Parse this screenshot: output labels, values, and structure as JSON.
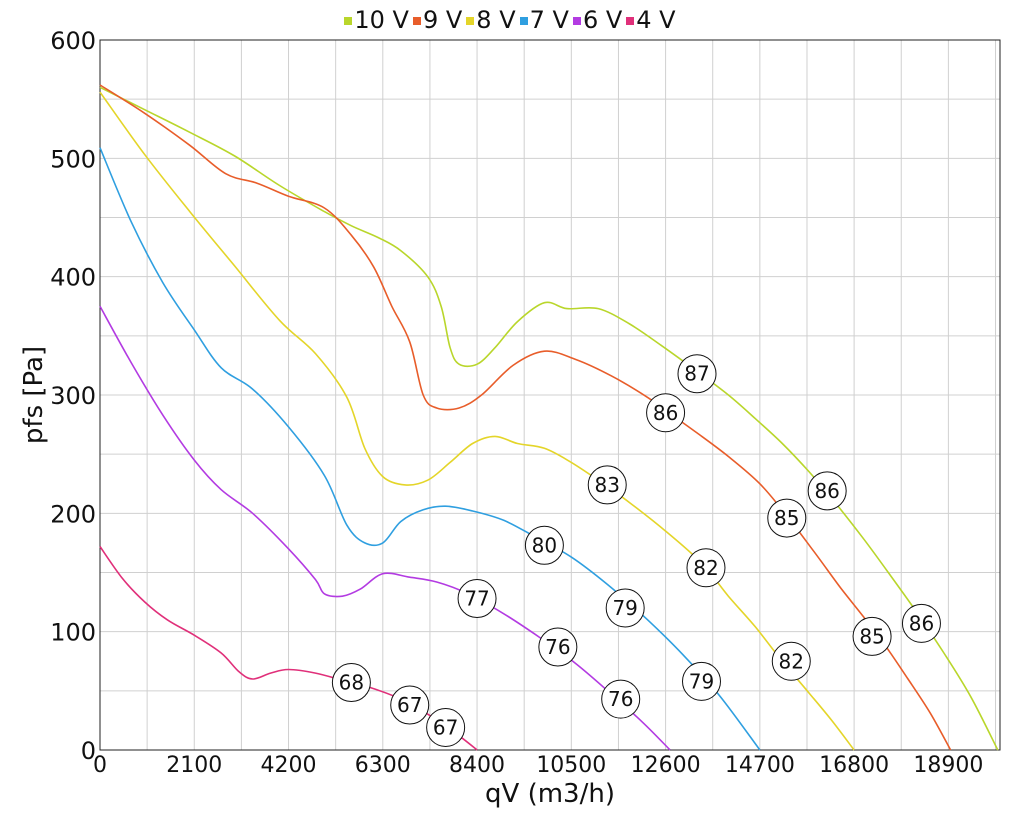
{
  "chart_data": {
    "type": "line",
    "xlabel": "qV (m3/h)",
    "ylabel": "pfs [Pa]",
    "xlim": [
      0,
      20050
    ],
    "ylim": [
      0,
      600
    ],
    "xticks": [
      0,
      2100,
      4200,
      6300,
      8400,
      10500,
      12600,
      14700,
      16800,
      18900
    ],
    "xtick_labels": [
      "0",
      "2100",
      "4200",
      "6300",
      "8400",
      "10500",
      "12600",
      "14700",
      "16800",
      "18900"
    ],
    "yticks": [
      0,
      100,
      200,
      300,
      400,
      500,
      600
    ],
    "ytick_labels": [
      "0",
      "100",
      "200",
      "300",
      "400",
      "500",
      "600"
    ],
    "grid": true,
    "legend_position": "top-center",
    "series": [
      {
        "name": "10 V",
        "color": "#b9d62b",
        "points": [
          [
            0,
            560
          ],
          [
            1000,
            541
          ],
          [
            2000,
            522
          ],
          [
            3000,
            502
          ],
          [
            4000,
            477
          ],
          [
            5000,
            455
          ],
          [
            5600,
            443
          ],
          [
            6200,
            433
          ],
          [
            6700,
            422
          ],
          [
            7300,
            400
          ],
          [
            7600,
            375
          ],
          [
            7800,
            340
          ],
          [
            8000,
            326
          ],
          [
            8400,
            326
          ],
          [
            8800,
            340
          ],
          [
            9300,
            362
          ],
          [
            9900,
            378
          ],
          [
            10400,
            373
          ],
          [
            11100,
            373
          ],
          [
            11800,
            360
          ],
          [
            12500,
            342
          ],
          [
            13300,
            320
          ],
          [
            14000,
            300
          ],
          [
            14600,
            280
          ],
          [
            15200,
            259
          ],
          [
            15800,
            235
          ],
          [
            16400,
            208
          ],
          [
            17000,
            179
          ],
          [
            17600,
            148
          ],
          [
            18200,
            116
          ],
          [
            18800,
            82
          ],
          [
            19400,
            45
          ],
          [
            20000,
            0
          ]
        ]
      },
      {
        "name": "9 V",
        "color": "#e85d2a",
        "points": [
          [
            0,
            562
          ],
          [
            1000,
            538
          ],
          [
            2000,
            511
          ],
          [
            2800,
            487
          ],
          [
            3500,
            479
          ],
          [
            4200,
            468
          ],
          [
            5000,
            458
          ],
          [
            5600,
            435
          ],
          [
            6100,
            408
          ],
          [
            6500,
            375
          ],
          [
            6900,
            345
          ],
          [
            7200,
            300
          ],
          [
            7500,
            289
          ],
          [
            8000,
            289
          ],
          [
            8500,
            300
          ],
          [
            9200,
            325
          ],
          [
            9900,
            337
          ],
          [
            10600,
            330
          ],
          [
            11400,
            316
          ],
          [
            12200,
            298
          ],
          [
            12600,
            287
          ],
          [
            13300,
            268
          ],
          [
            14000,
            248
          ],
          [
            14700,
            225
          ],
          [
            15300,
            198
          ],
          [
            15900,
            168
          ],
          [
            16500,
            137
          ],
          [
            17000,
            113
          ],
          [
            17500,
            88
          ],
          [
            18000,
            60
          ],
          [
            18500,
            31
          ],
          [
            18950,
            0
          ]
        ]
      },
      {
        "name": "8 V",
        "color": "#e4d529",
        "points": [
          [
            0,
            556
          ],
          [
            1000,
            503
          ],
          [
            2000,
            455
          ],
          [
            3000,
            409
          ],
          [
            4000,
            363
          ],
          [
            4800,
            335
          ],
          [
            5500,
            298
          ],
          [
            5900,
            255
          ],
          [
            6300,
            231
          ],
          [
            6800,
            224
          ],
          [
            7300,
            228
          ],
          [
            7800,
            243
          ],
          [
            8300,
            259
          ],
          [
            8800,
            265
          ],
          [
            9300,
            259
          ],
          [
            9900,
            255
          ],
          [
            10500,
            243
          ],
          [
            11100,
            228
          ],
          [
            11800,
            209
          ],
          [
            12600,
            185
          ],
          [
            13400,
            158
          ],
          [
            14000,
            130
          ],
          [
            14600,
            104
          ],
          [
            15200,
            75
          ],
          [
            15800,
            48
          ],
          [
            16300,
            25
          ],
          [
            16800,
            0
          ]
        ]
      },
      {
        "name": "7 V",
        "color": "#2f9fe0",
        "points": [
          [
            0,
            509
          ],
          [
            700,
            446
          ],
          [
            1400,
            395
          ],
          [
            2100,
            355
          ],
          [
            2700,
            323
          ],
          [
            3400,
            305
          ],
          [
            4200,
            273
          ],
          [
            5000,
            232
          ],
          [
            5500,
            190
          ],
          [
            5900,
            175
          ],
          [
            6300,
            175
          ],
          [
            6700,
            193
          ],
          [
            7200,
            203
          ],
          [
            7700,
            206
          ],
          [
            8300,
            202
          ],
          [
            9000,
            194
          ],
          [
            9700,
            180
          ],
          [
            10500,
            163
          ],
          [
            11300,
            140
          ],
          [
            12200,
            110
          ],
          [
            13000,
            80
          ],
          [
            13800,
            46
          ],
          [
            14700,
            0
          ]
        ]
      },
      {
        "name": "6 V",
        "color": "#b33be2",
        "points": [
          [
            0,
            375
          ],
          [
            700,
            327
          ],
          [
            1400,
            283
          ],
          [
            2100,
            245
          ],
          [
            2700,
            220
          ],
          [
            3400,
            200
          ],
          [
            4200,
            170
          ],
          [
            4800,
            144
          ],
          [
            5000,
            132
          ],
          [
            5400,
            130
          ],
          [
            5800,
            136
          ],
          [
            6300,
            149
          ],
          [
            6900,
            146
          ],
          [
            7500,
            142
          ],
          [
            8200,
            132
          ],
          [
            9000,
            115
          ],
          [
            9800,
            95
          ],
          [
            10600,
            73
          ],
          [
            11400,
            47
          ],
          [
            12100,
            23
          ],
          [
            12700,
            0
          ]
        ]
      },
      {
        "name": "4 V",
        "color": "#e0307a",
        "points": [
          [
            0,
            172
          ],
          [
            500,
            145
          ],
          [
            1000,
            125
          ],
          [
            1500,
            110
          ],
          [
            2100,
            97
          ],
          [
            2700,
            82
          ],
          [
            3100,
            66
          ],
          [
            3400,
            60
          ],
          [
            3800,
            65
          ],
          [
            4200,
            68
          ],
          [
            4800,
            65
          ],
          [
            5400,
            59
          ],
          [
            6000,
            53
          ],
          [
            6700,
            43
          ],
          [
            7400,
            28
          ],
          [
            8000,
            12
          ],
          [
            8400,
            0
          ]
        ]
      }
    ],
    "annotations": [
      {
        "text": "87",
        "x": 13300,
        "y": 318
      },
      {
        "text": "86",
        "x": 12600,
        "y": 285
      },
      {
        "text": "83",
        "x": 11300,
        "y": 224
      },
      {
        "text": "80",
        "x": 9900,
        "y": 173
      },
      {
        "text": "77",
        "x": 8400,
        "y": 128
      },
      {
        "text": "68",
        "x": 5600,
        "y": 57
      },
      {
        "text": "67",
        "x": 6900,
        "y": 38
      },
      {
        "text": "67",
        "x": 7700,
        "y": 19
      },
      {
        "text": "86",
        "x": 16200,
        "y": 219
      },
      {
        "text": "85",
        "x": 15300,
        "y": 196
      },
      {
        "text": "82",
        "x": 13500,
        "y": 154
      },
      {
        "text": "79",
        "x": 11700,
        "y": 120
      },
      {
        "text": "76",
        "x": 10200,
        "y": 87
      },
      {
        "text": "76",
        "x": 11600,
        "y": 43
      },
      {
        "text": "79",
        "x": 13400,
        "y": 58
      },
      {
        "text": "82",
        "x": 15400,
        "y": 75
      },
      {
        "text": "85",
        "x": 17200,
        "y": 96
      },
      {
        "text": "86",
        "x": 18300,
        "y": 107
      }
    ]
  }
}
